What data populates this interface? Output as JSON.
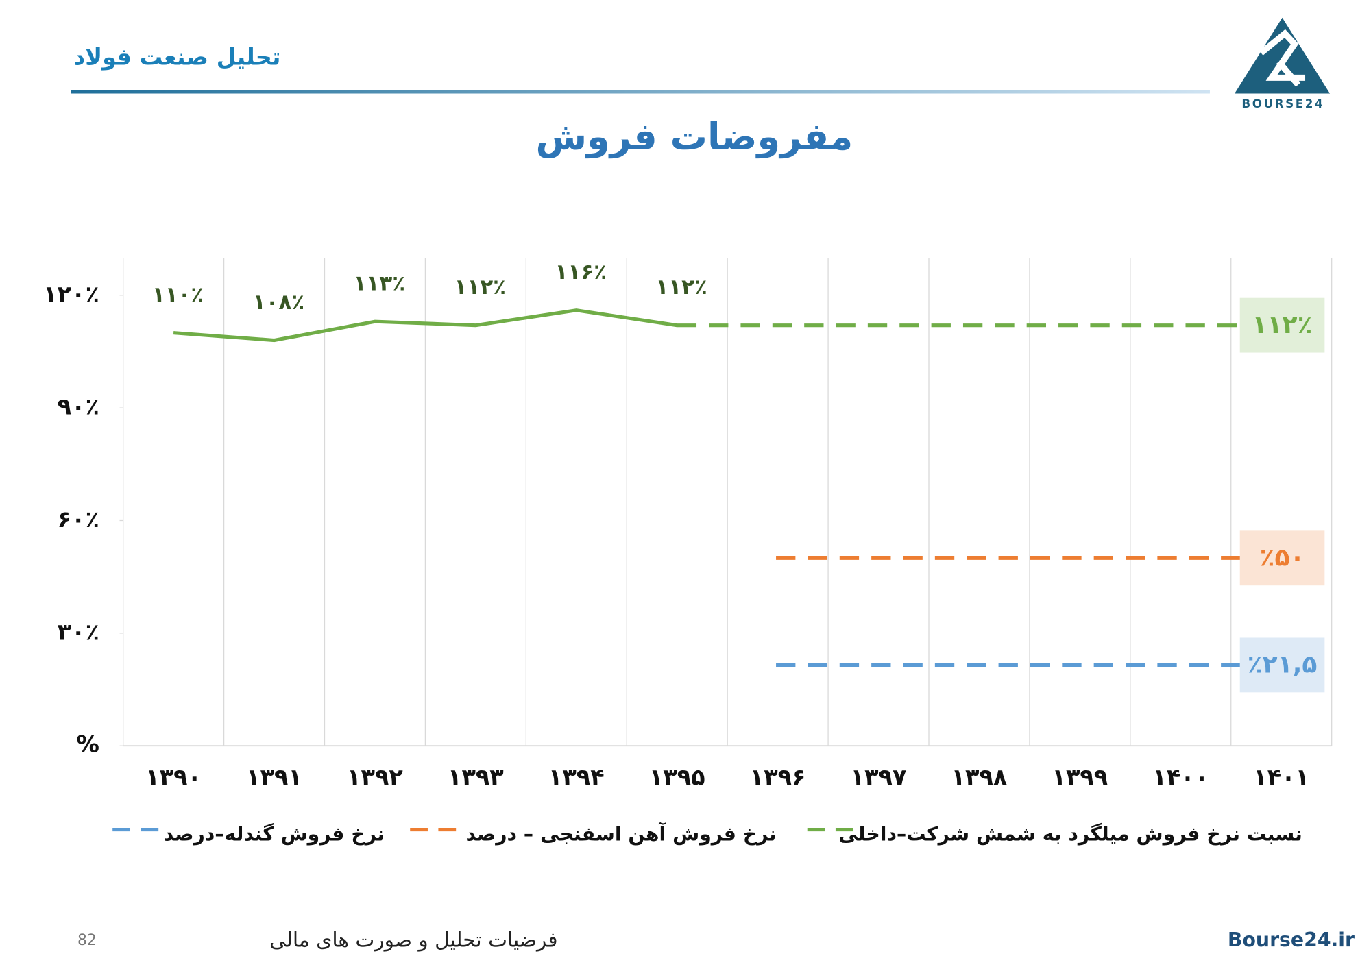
{
  "header": {
    "subject": "تحلیل صنعت فولاد",
    "logo": "BOURSE24"
  },
  "chart_data": {
    "type": "line",
    "title": "مفروضات فروش",
    "categories": [
      "۱۳۹۰",
      "۱۳۹۱",
      "۱۳۹۲",
      "۱۳۹۳",
      "۱۳۹۴",
      "۱۳۹۵",
      "۱۳۹۶",
      "۱۳۹۷",
      "۱۳۹۸",
      "۱۳۹۹",
      "۱۴۰۰",
      "۱۴۰۱"
    ],
    "ylim": [
      0,
      130
    ],
    "yticks": [
      {
        "value": 0,
        "label": "%"
      },
      {
        "value": 30,
        "label": "۳۰٪"
      },
      {
        "value": 60,
        "label": "۶۰٪"
      },
      {
        "value": 90,
        "label": "۹۰٪"
      },
      {
        "value": 120,
        "label": "۱۲۰٪"
      }
    ],
    "grid": true,
    "series": [
      {
        "name": "نسبت نرخ فروش میلگرد به شمش شرکت–داخلی",
        "color": "#70ad47",
        "box_color": "#e2efd9",
        "values": [
          110,
          108,
          113,
          112,
          116,
          112,
          null,
          null,
          null,
          null,
          null,
          null
        ],
        "value_labels": [
          "۱۱۰٪",
          "۱۰۸٪",
          "۱۱۳٪",
          "۱۱۲٪",
          "۱۱۶٪",
          "۱۱۲٪",
          null,
          null,
          null,
          null,
          null,
          null
        ],
        "forecast": 112,
        "forecast_label": "۱۱۲٪",
        "forecast_from": "۱۳۹۵"
      },
      {
        "name": "نرخ فروش آهن اسفنجی – درصد",
        "color": "#ed7d31",
        "box_color": "#fbe4d5",
        "forecast": 50,
        "forecast_label": "٪۵۰",
        "forecast_from": "۱۳۹۶"
      },
      {
        "name": "نرخ فروش گندله–درصد",
        "color": "#5b9bd5",
        "box_color": "#deeaf6",
        "forecast": 21.5,
        "forecast_label": "٪۲۱,۵",
        "forecast_from": "۱۳۹۶"
      }
    ]
  },
  "footer": {
    "page": "82",
    "section": "فرضیات تحلیل و صورت های مالی",
    "site": "Bourse24.ir"
  }
}
